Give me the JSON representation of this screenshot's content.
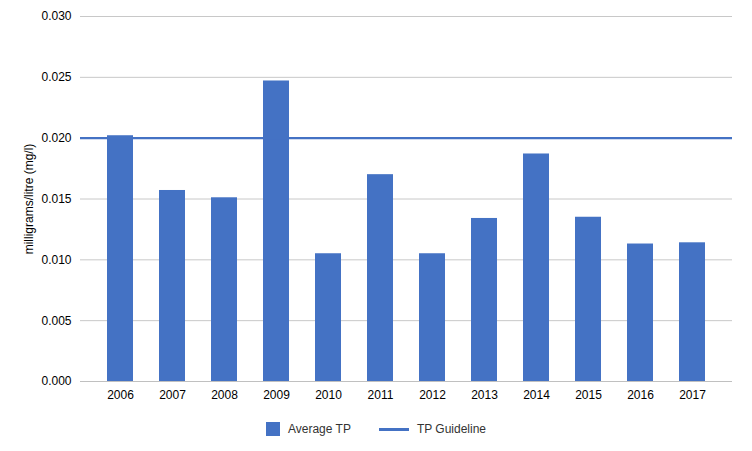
{
  "chart_data": {
    "type": "bar",
    "categories": [
      "2006",
      "2007",
      "2008",
      "2009",
      "2010",
      "2011",
      "2012",
      "2013",
      "2014",
      "2015",
      "2016",
      "2017"
    ],
    "series": [
      {
        "name": "Average TP",
        "type": "bar",
        "color": "#4472C4",
        "values": [
          0.0202,
          0.0157,
          0.0151,
          0.0247,
          0.0105,
          0.017,
          0.0105,
          0.0134,
          0.0187,
          0.0135,
          0.0113,
          0.0114
        ]
      }
    ],
    "hlines": [
      {
        "name": "TP Guideline",
        "value": 0.02,
        "color": "#4472C4"
      }
    ],
    "ylabel": "milligrams/litre (mg/l)",
    "ylim": [
      0.0,
      0.03
    ],
    "yticks": [
      {
        "value": 0.0,
        "label": "0.000"
      },
      {
        "value": 0.005,
        "label": "0.005"
      },
      {
        "value": 0.01,
        "label": "0.010"
      },
      {
        "value": 0.015,
        "label": "0.015"
      },
      {
        "value": 0.02,
        "label": "0.020"
      },
      {
        "value": 0.025,
        "label": "0.025"
      },
      {
        "value": 0.03,
        "label": "0.030"
      }
    ],
    "grid": true,
    "legend": "bottom"
  }
}
